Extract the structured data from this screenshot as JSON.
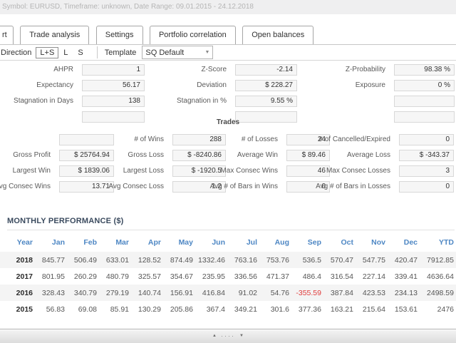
{
  "window": {
    "title": "Symbol: EURUSD, Timeframe: unknown, Date Range: 09.01.2015 - 24.12.2018"
  },
  "tabs": [
    "rt",
    "Trade analysis",
    "Settings",
    "Portfolio correlation",
    "Open balances"
  ],
  "toolbar": {
    "direction_label": "Direction",
    "buttons": [
      "L+S",
      "L",
      "S"
    ],
    "active_button": "L+S",
    "template_label": "Template",
    "template_value": "SQ Default",
    "caret": "▼"
  },
  "stats": {
    "rows": [
      [
        {
          "label": "AHPR",
          "value": "1"
        },
        {
          "label": "Z-Score",
          "value": "-2.14"
        },
        {
          "label": "Z-Probability",
          "value": "98.38 %"
        }
      ],
      [
        {
          "label": "Expectancy",
          "value": "56.17"
        },
        {
          "label": "Deviation",
          "value": "$ 228.27"
        },
        {
          "label": "Exposure",
          "value": "0 %"
        }
      ],
      [
        {
          "label": "Stagnation in Days",
          "value": "138"
        },
        {
          "label": "Stagnation in %",
          "value": "9.55 %"
        },
        {
          "label": "",
          "value": ""
        }
      ],
      [
        {
          "label": "",
          "value": ""
        },
        {
          "label": "",
          "value": ""
        },
        {
          "label": "",
          "value": ""
        }
      ]
    ]
  },
  "trades": {
    "title": "Trades",
    "rows": [
      [
        {
          "label": "",
          "value": ""
        },
        {
          "label": "# of Wins",
          "value": "288"
        },
        {
          "label": "# of Losses",
          "value": "24"
        },
        {
          "label": "# of Cancelled/Expired",
          "value": "0"
        }
      ],
      [
        {
          "label": "Gross Profit",
          "value": "$ 25764.94"
        },
        {
          "label": "Gross Loss",
          "value": "$ -8240.86"
        },
        {
          "label": "Average Win",
          "value": "$ 89.46"
        },
        {
          "label": "Average Loss",
          "value": "$ -343.37"
        }
      ],
      [
        {
          "label": "Largest Win",
          "value": "$ 1839.06"
        },
        {
          "label": "Largest Loss",
          "value": "$ -1920.5"
        },
        {
          "label": "Max Consec Wins",
          "value": "46"
        },
        {
          "label": "Max Consec Losses",
          "value": "3"
        }
      ],
      [
        {
          "label": "Avg Consec Wins",
          "value": "13.71"
        },
        {
          "label": "Avg Consec Loss",
          "value": "1.2"
        },
        {
          "label": "Avg # of Bars in Wins",
          "value": "0"
        },
        {
          "label": "Avg # of Bars in Losses",
          "value": "0"
        }
      ]
    ]
  },
  "monthly": {
    "title": "MONTHLY PERFORMANCE ($)",
    "columns": [
      "Year",
      "Jan",
      "Feb",
      "Mar",
      "Apr",
      "May",
      "Jun",
      "Jul",
      "Aug",
      "Sep",
      "Oct",
      "Nov",
      "Dec",
      "YTD"
    ],
    "rows": [
      {
        "year": "2018",
        "values": [
          "845.77",
          "506.49",
          "633.01",
          "128.52",
          "874.49",
          "1332.46",
          "763.16",
          "753.76",
          "536.5",
          "570.47",
          "547.75",
          "420.47",
          "7912.85"
        ]
      },
      {
        "year": "2017",
        "values": [
          "801.95",
          "260.29",
          "480.79",
          "325.57",
          "354.67",
          "235.95",
          "336.56",
          "471.37",
          "486.4",
          "316.54",
          "227.14",
          "339.41",
          "4636.64"
        ]
      },
      {
        "year": "2016",
        "values": [
          "328.43",
          "340.79",
          "279.19",
          "140.74",
          "156.91",
          "416.84",
          "91.02",
          "54.76",
          "-355.59",
          "387.84",
          "423.53",
          "234.13",
          "2498.59"
        ]
      },
      {
        "year": "2015",
        "values": [
          "56.83",
          "69.08",
          "85.91",
          "130.29",
          "205.86",
          "367.4",
          "349.21",
          "301.6",
          "377.36",
          "163.21",
          "215.64",
          "153.61",
          "2476"
        ]
      }
    ]
  },
  "splitter": {
    "up": "▲",
    "dots": "····",
    "down": "▼"
  },
  "colors": {
    "header_blue": "#4e87c4",
    "negative_red": "#e03c3c",
    "title_text_gray": "#b5b5b5",
    "section_navy": "#3a4a5e",
    "box_fill": "#f6f6f6"
  }
}
